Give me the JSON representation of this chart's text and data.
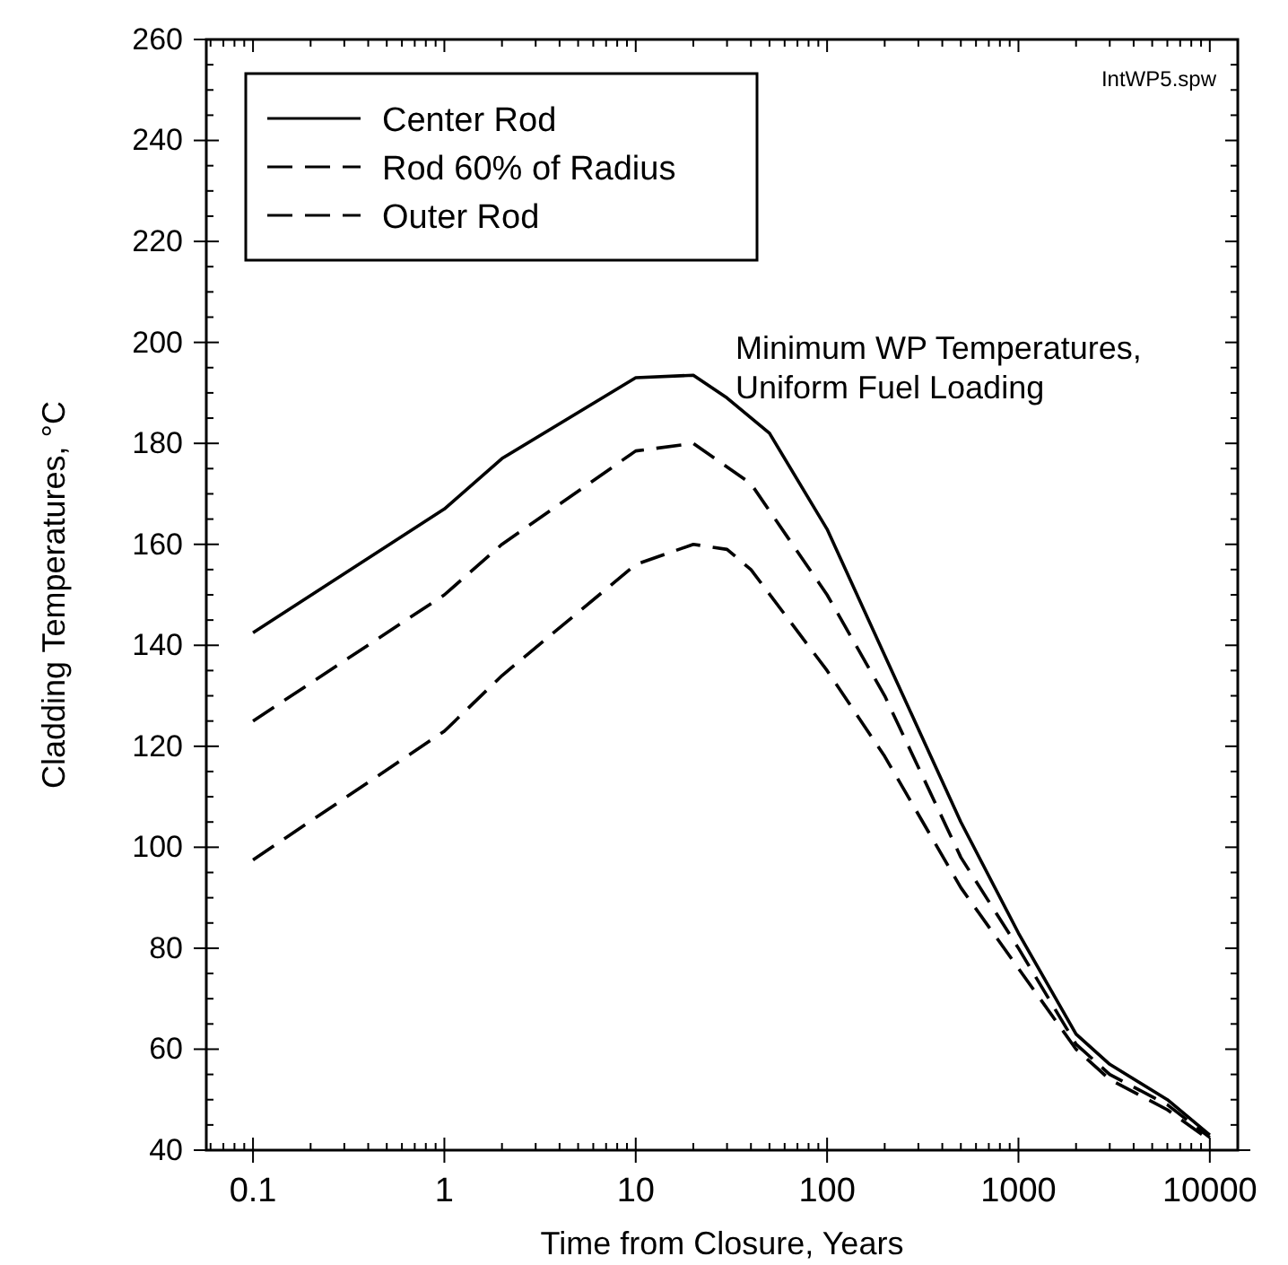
{
  "chart_data": {
    "type": "line",
    "xlabel": "Time from Closure, Years",
    "ylabel": "Cladding Temperatures, °C",
    "log": "x",
    "xlim": [
      0.057,
      14000
    ],
    "ylim": [
      40,
      260
    ],
    "xticks": [
      0.1,
      1,
      10,
      100,
      1000,
      10000
    ],
    "yticks": [
      40,
      60,
      80,
      100,
      120,
      140,
      160,
      180,
      200,
      220,
      240,
      260
    ],
    "grid": false,
    "legend": "top left",
    "marker": "none",
    "annotations": [
      "IntWP5.spw",
      "Minimum WP Temperatures,\nUniform Fuel Loading"
    ],
    "series": [
      {
        "name": "Center Rod",
        "color": "#000000",
        "line_style": "solid",
        "x": [
          0.1,
          1,
          2,
          10,
          20,
          30,
          50,
          100,
          200,
          500,
          1000,
          2000,
          3000,
          6000,
          10000
        ],
        "values": [
          142.5,
          167,
          177,
          193,
          193.5,
          189,
          182,
          163,
          138,
          105,
          83,
          63,
          57,
          50,
          43
        ]
      },
      {
        "name": "Rod 60% of Radius",
        "color": "#000000",
        "line_style": "dashed",
        "x": [
          0.1,
          1,
          2,
          10,
          20,
          40,
          100,
          200,
          500,
          1000,
          2000,
          3000,
          6000,
          10000
        ],
        "values": [
          125,
          150,
          160,
          178.5,
          180,
          172,
          150,
          130,
          98,
          80,
          61,
          55,
          49,
          42.5
        ]
      },
      {
        "name": "Outer Rod",
        "color": "#000000",
        "line_style": "dashed",
        "x": [
          0.1,
          1,
          2,
          10,
          20,
          30,
          40,
          100,
          200,
          500,
          1000,
          2000,
          3000,
          6000,
          10000
        ],
        "values": [
          97.5,
          123,
          134,
          156,
          160,
          159,
          155,
          135,
          118,
          92,
          76,
          60,
          54,
          48,
          42
        ]
      }
    ]
  }
}
